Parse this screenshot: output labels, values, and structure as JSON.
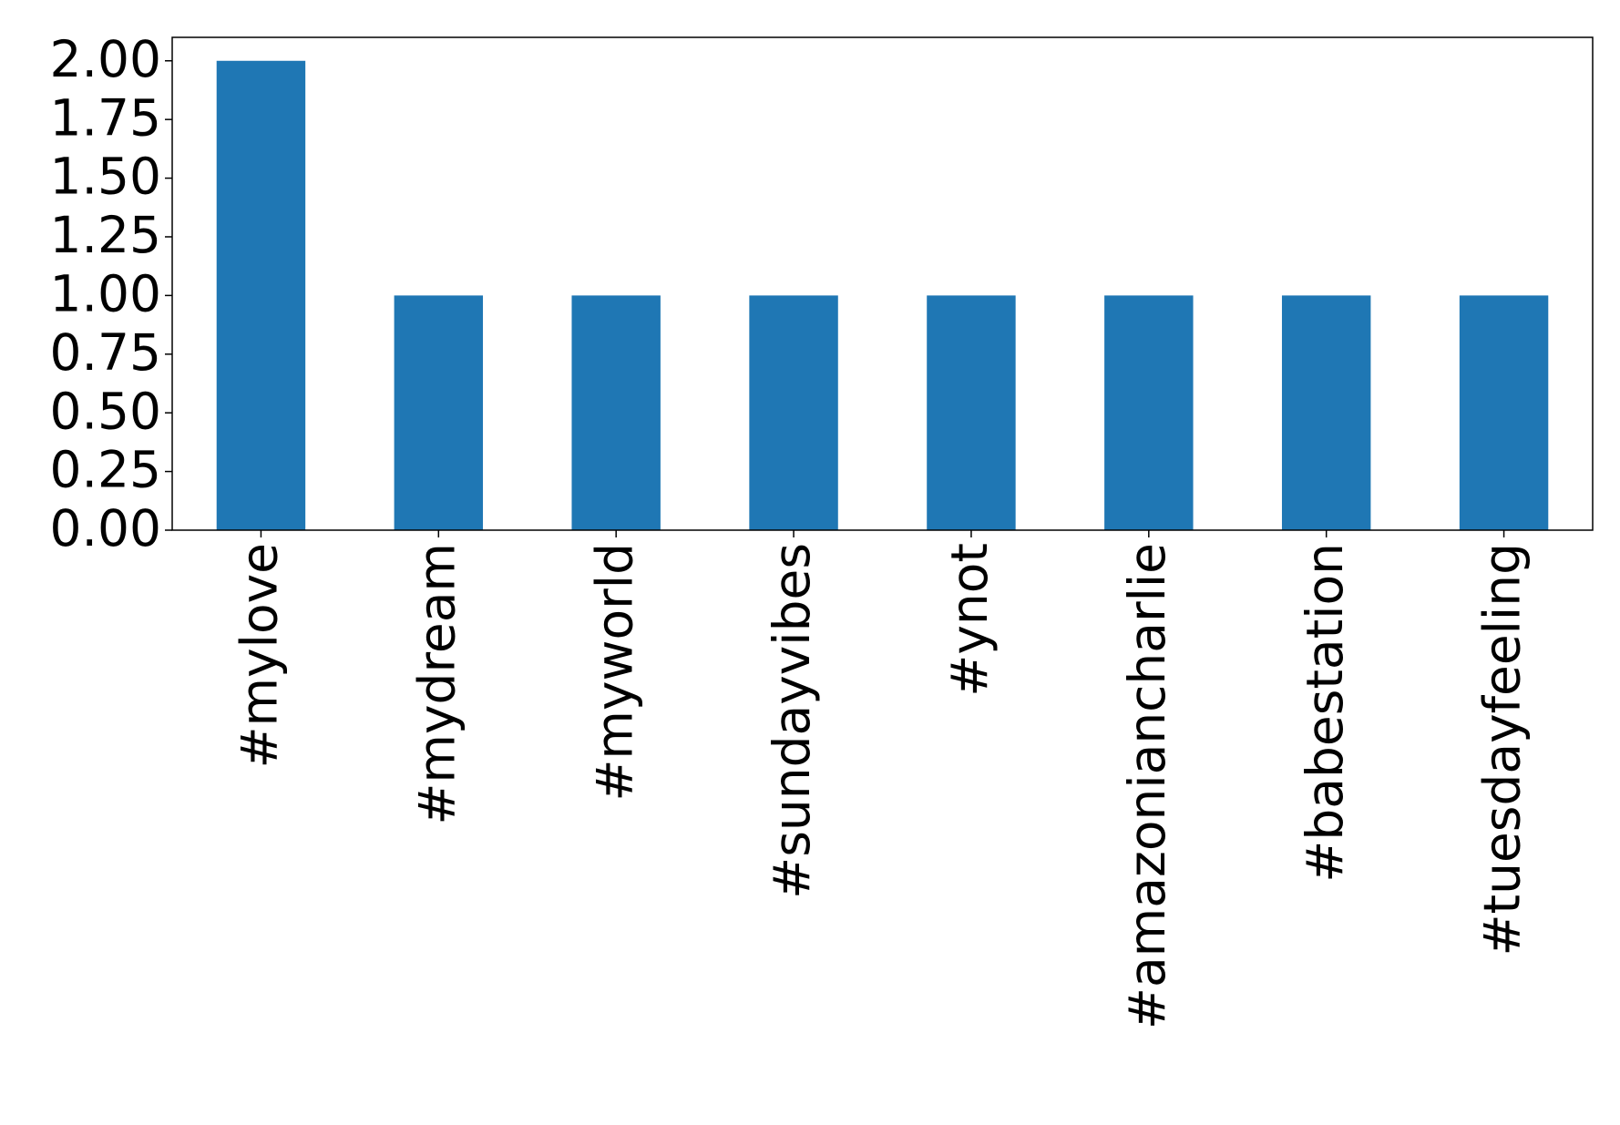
{
  "chart_data": {
    "type": "bar",
    "categories": [
      "#mylove",
      "#mydream",
      "#myworld",
      "#sundayvibes",
      "#ynot",
      "#amazoniancharlie",
      "#babestation",
      "#tuesdayfeeling"
    ],
    "values": [
      2,
      1,
      1,
      1,
      1,
      1,
      1,
      1
    ],
    "color": "#1f77b4",
    "ylim": [
      0,
      2.1
    ],
    "yticks": [
      {
        "value": 0,
        "label": "0.00"
      },
      {
        "value": 0.25,
        "label": "0.25"
      },
      {
        "value": 0.5,
        "label": "0.50"
      },
      {
        "value": 0.75,
        "label": "0.75"
      },
      {
        "value": 1,
        "label": "1.00"
      },
      {
        "value": 1.25,
        "label": "1.25"
      },
      {
        "value": 1.5,
        "label": "1.50"
      },
      {
        "value": 1.75,
        "label": "1.75"
      },
      {
        "value": 2,
        "label": "2.00"
      }
    ],
    "grid": false
  }
}
